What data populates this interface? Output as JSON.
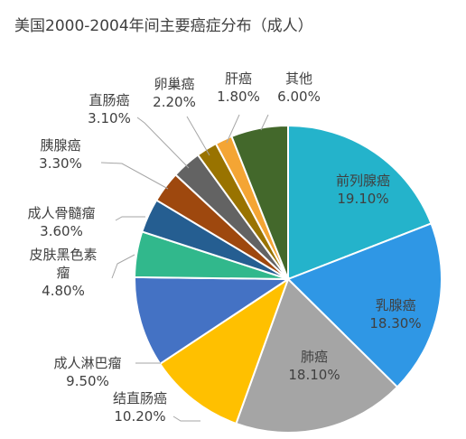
{
  "chart_data": {
    "type": "pie",
    "title": "美国2000-2004年间主要癌症分布（成人）",
    "slices": [
      {
        "name": "前列腺癌",
        "label": "前列腺癌",
        "value": 19.1,
        "value_label": "19.10%",
        "color": "#24B3CB",
        "label_inside": true,
        "text_color": "#404040"
      },
      {
        "name": "乳腺癌",
        "label": "乳腺癌",
        "value": 18.3,
        "value_label": "18.30%",
        "color": "#2F97E5",
        "label_inside": true,
        "text_color": "#404040"
      },
      {
        "name": "肺癌",
        "label": "肺癌",
        "value": 18.1,
        "value_label": "18.10%",
        "color": "#A5A5A5",
        "label_inside": true,
        "text_color": "#404040"
      },
      {
        "name": "结直肠癌",
        "label": "结直肠癌",
        "value": 10.2,
        "value_label": "10.20%",
        "color": "#FFC000",
        "label_inside": false
      },
      {
        "name": "成人淋巴瘤",
        "label": "成人淋巴瘤",
        "value": 9.5,
        "value_label": "9.50%",
        "color": "#4472C4",
        "label_inside": false
      },
      {
        "name": "皮肤黑色素瘤",
        "label": "皮肤黑色素\n瘤",
        "value": 4.8,
        "value_label": "4.80%",
        "color": "#31B88C",
        "label_inside": false
      },
      {
        "name": "成人骨髓瘤",
        "label": "成人骨髓瘤",
        "value": 3.6,
        "value_label": "3.60%",
        "color": "#255E91",
        "label_inside": false
      },
      {
        "name": "胰腺癌",
        "label": "胰腺癌",
        "value": 3.3,
        "value_label": "3.30%",
        "color": "#9E480E",
        "label_inside": false
      },
      {
        "name": "直肠癌",
        "label": "直肠癌",
        "value": 3.1,
        "value_label": "3.10%",
        "color": "#636363",
        "label_inside": false
      },
      {
        "name": "卵巢癌",
        "label": "卵巢癌",
        "value": 2.2,
        "value_label": "2.20%",
        "color": "#997300",
        "label_inside": false
      },
      {
        "name": "肝癌",
        "label": "肝癌",
        "value": 1.8,
        "value_label": "1.80%",
        "color": "#F4A534",
        "label_inside": false
      },
      {
        "name": "其他",
        "label": "其他",
        "value": 6.0,
        "value_label": "6.00%",
        "color": "#43682B",
        "label_inside": false
      }
    ],
    "start_angle": "12 o'clock",
    "direction": "clockwise",
    "legend": "none",
    "label_color": "#404040",
    "leader_line_color": "#A6A6A6"
  }
}
